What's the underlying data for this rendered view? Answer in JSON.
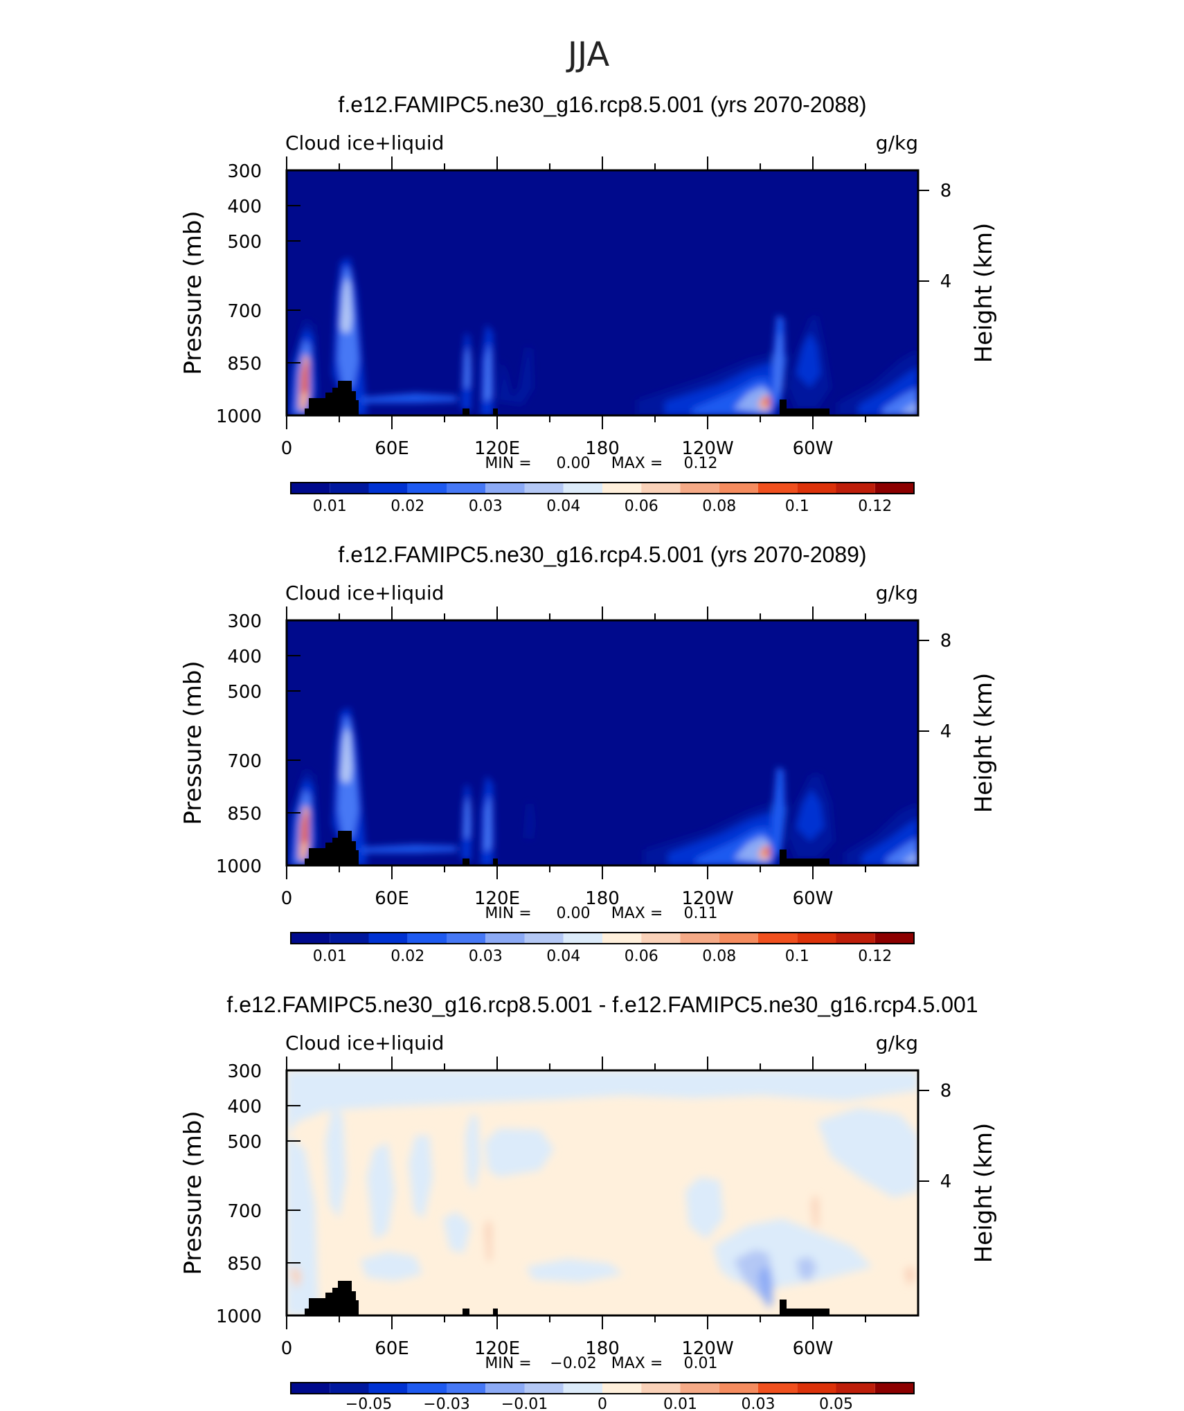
{
  "figure": {
    "title": "JJA"
  },
  "colors": {
    "black": "#000000",
    "terrain": "#000000"
  },
  "chart_data": [
    {
      "type": "heatmap",
      "title": "f.e12.FAMIPC5.ne30_g16.rcp8.5.001 (yrs 2070-2088)",
      "left_string": "Cloud ice+liquid",
      "right_string": "g/kg",
      "ylabel": "Pressure (mb)",
      "ylabel_right": "Height (km)",
      "x_ticks": [
        "0",
        "60E",
        "120E",
        "180",
        "120W",
        "60W"
      ],
      "y_ticks": [
        "300",
        "400",
        "500",
        "700",
        "850",
        "1000"
      ],
      "y_ticks_right": [
        "8",
        "4"
      ],
      "ylim": [
        300,
        1000
      ],
      "y_scale": "log",
      "min_label": "MIN =",
      "min_value": "0.00",
      "max_label": "MAX =",
      "max_value": "0.12",
      "colorbar_labels": [
        "0.01",
        "0.02",
        "0.03",
        "0.04",
        "0.06",
        "0.08",
        "0.1",
        "0.12"
      ],
      "colorbar_colors": [
        "#000a8c",
        "#00189e",
        "#0032d2",
        "#1e5af0",
        "#4678f5",
        "#8caaf5",
        "#b4c8f5",
        "#dcebfa",
        "#fff0dc",
        "#fad2b9",
        "#f5aa87",
        "#f58c5f",
        "#f0501e",
        "#dc320a",
        "#be1e0a",
        "#8c0000"
      ],
      "background_value": "<0.01",
      "features": [
        {
          "lon": 15,
          "p": 850,
          "v": 0.11
        },
        {
          "lon": 47,
          "p": 700,
          "v": 0.035
        },
        {
          "lon": 105,
          "p": 850,
          "v": 0.02
        },
        {
          "lon": 118,
          "p": 860,
          "v": 0.02
        },
        {
          "lon": 138,
          "p": 850,
          "v": 0.012
        },
        {
          "lon": 230,
          "p": 880,
          "v": 0.02
        },
        {
          "lon": 275,
          "p": 920,
          "v": 0.09
        },
        {
          "lon": 283,
          "p": 760,
          "v": 0.025
        },
        {
          "lon": 353,
          "p": 880,
          "v": 0.03
        }
      ]
    },
    {
      "type": "heatmap",
      "title": "f.e12.FAMIPC5.ne30_g16.rcp4.5.001 (yrs 2070-2089)",
      "left_string": "Cloud ice+liquid",
      "right_string": "g/kg",
      "ylabel": "Pressure (mb)",
      "ylabel_right": "Height (km)",
      "x_ticks": [
        "0",
        "60E",
        "120E",
        "180",
        "120W",
        "60W"
      ],
      "y_ticks": [
        "300",
        "400",
        "500",
        "700",
        "850",
        "1000"
      ],
      "y_ticks_right": [
        "8",
        "4"
      ],
      "ylim": [
        300,
        1000
      ],
      "y_scale": "log",
      "min_label": "MIN =",
      "min_value": "0.00",
      "max_label": "MAX =",
      "max_value": "0.11",
      "colorbar_labels": [
        "0.01",
        "0.02",
        "0.03",
        "0.04",
        "0.06",
        "0.08",
        "0.1",
        "0.12"
      ],
      "colorbar_colors": [
        "#000a8c",
        "#00189e",
        "#0032d2",
        "#1e5af0",
        "#4678f5",
        "#8caaf5",
        "#b4c8f5",
        "#dcebfa",
        "#fff0dc",
        "#fad2b9",
        "#f5aa87",
        "#f58c5f",
        "#f0501e",
        "#dc320a",
        "#be1e0a",
        "#8c0000"
      ],
      "background_value": "<0.01",
      "features": [
        {
          "lon": 15,
          "p": 850,
          "v": 0.1
        },
        {
          "lon": 47,
          "p": 700,
          "v": 0.035
        },
        {
          "lon": 105,
          "p": 850,
          "v": 0.02
        },
        {
          "lon": 118,
          "p": 860,
          "v": 0.02
        },
        {
          "lon": 138,
          "p": 850,
          "v": 0.012
        },
        {
          "lon": 235,
          "p": 890,
          "v": 0.02
        },
        {
          "lon": 275,
          "p": 920,
          "v": 0.09
        },
        {
          "lon": 285,
          "p": 780,
          "v": 0.025
        },
        {
          "lon": 353,
          "p": 880,
          "v": 0.03
        }
      ]
    },
    {
      "type": "heatmap",
      "title": "f.e12.FAMIPC5.ne30_g16.rcp8.5.001 - f.e12.FAMIPC5.ne30_g16.rcp4.5.001",
      "left_string": "Cloud ice+liquid",
      "right_string": "g/kg",
      "ylabel": "Pressure (mb)",
      "ylabel_right": "Height (km)",
      "x_ticks": [
        "0",
        "60E",
        "120E",
        "180",
        "120W",
        "60W"
      ],
      "y_ticks": [
        "300",
        "400",
        "500",
        "700",
        "850",
        "1000"
      ],
      "y_ticks_right": [
        "8",
        "4"
      ],
      "ylim": [
        300,
        1000
      ],
      "y_scale": "log",
      "min_label": "MIN =",
      "min_value": "−0.02",
      "max_label": "MAX =",
      "max_value": "0.01",
      "colorbar_labels": [
        "−0.05",
        "−0.03",
        "−0.01",
        "0",
        "0.01",
        "0.03",
        "0.05"
      ],
      "colorbar_colors": [
        "#000a8c",
        "#00189e",
        "#0032d2",
        "#1e5af0",
        "#4678f5",
        "#8caaf5",
        "#b4c8f5",
        "#dcebfa",
        "#fff0dc",
        "#fad2b9",
        "#f5aa87",
        "#f58c5f",
        "#f0501e",
        "#dc320a",
        "#be1e0a",
        "#8c0000"
      ],
      "background_value": "0 to 0.01",
      "features": [
        {
          "lon": 10,
          "p": 600,
          "v": -0.005
        },
        {
          "lon": 75,
          "p": 700,
          "v": -0.005
        },
        {
          "lon": 120,
          "p": 600,
          "v": -0.005
        },
        {
          "lon": 112,
          "p": 830,
          "v": 0.005
        },
        {
          "lon": 175,
          "p": 880,
          "v": -0.005
        },
        {
          "lon": 252,
          "p": 860,
          "v": -0.005
        },
        {
          "lon": 270,
          "p": 900,
          "v": -0.015
        },
        {
          "lon": 320,
          "p": 500,
          "v": -0.005
        },
        {
          "lon": 300,
          "p": 720,
          "v": 0.005
        }
      ]
    }
  ]
}
